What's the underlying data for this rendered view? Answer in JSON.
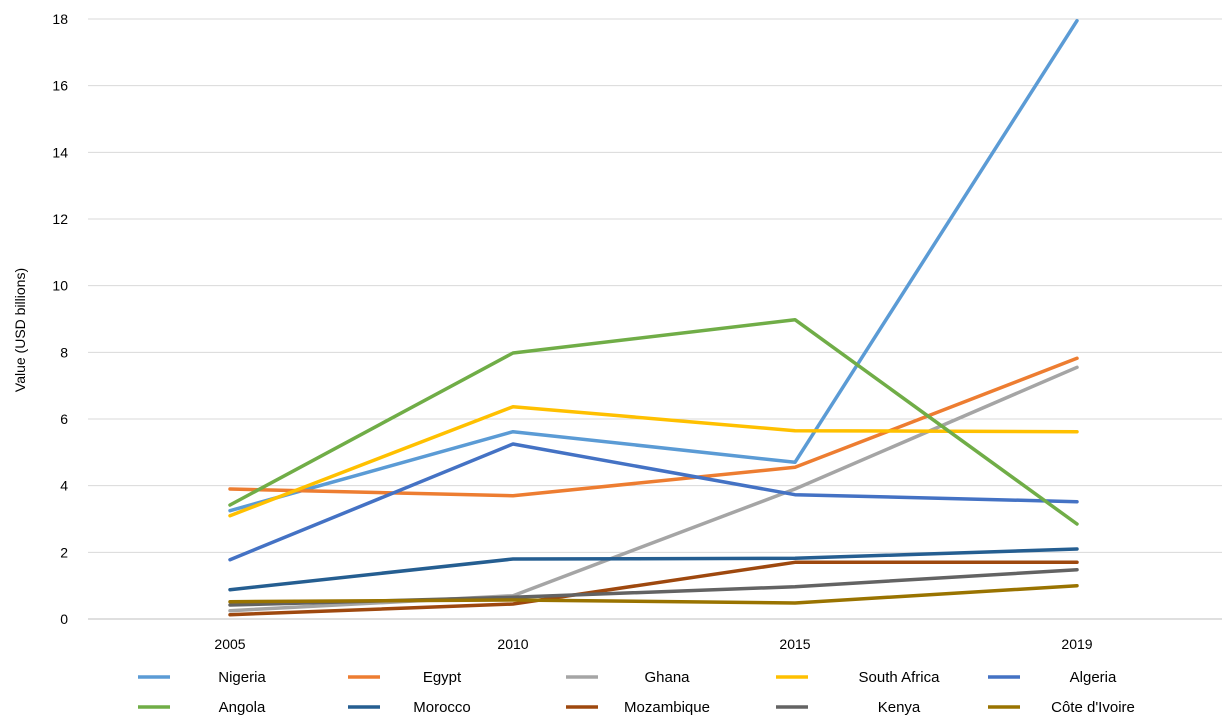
{
  "chart_data": {
    "type": "line",
    "x": [
      "2005",
      "2010",
      "2015",
      "2019"
    ],
    "ylabel": "Value (USD  billions)",
    "ylim": [
      0,
      18
    ],
    "yticks": [
      "0",
      "2",
      "4",
      "6",
      "8",
      "10",
      "12",
      "14",
      "16",
      "18"
    ],
    "grid": true,
    "legend_position": "bottom",
    "series": [
      {
        "name": "Nigeria",
        "color": "#5B9BD5",
        "values": [
          3.25,
          5.62,
          4.7,
          17.95
        ]
      },
      {
        "name": "Egypt",
        "color": "#ED7D31",
        "values": [
          3.9,
          3.7,
          4.55,
          7.82
        ]
      },
      {
        "name": "Ghana",
        "color": "#A5A5A5",
        "values": [
          0.25,
          0.7,
          3.9,
          7.55
        ]
      },
      {
        "name": "South Africa",
        "color": "#FFC000",
        "values": [
          3.1,
          6.37,
          5.65,
          5.62
        ]
      },
      {
        "name": "Algeria",
        "color": "#4472C4",
        "values": [
          1.78,
          5.25,
          3.73,
          3.52
        ]
      },
      {
        "name": "Angola",
        "color": "#70AD47",
        "values": [
          3.42,
          7.98,
          8.98,
          2.85
        ]
      },
      {
        "name": "Morocco",
        "color": "#255E91",
        "values": [
          0.88,
          1.8,
          1.82,
          2.1
        ]
      },
      {
        "name": "Mozambique",
        "color": "#9E480E",
        "values": [
          0.13,
          0.45,
          1.7,
          1.7
        ]
      },
      {
        "name": "Kenya",
        "color": "#636363",
        "values": [
          0.42,
          0.65,
          0.97,
          1.48
        ]
      },
      {
        "name": "Côte d'Ivoire",
        "color": "#997300",
        "values": [
          0.52,
          0.57,
          0.48,
          1.0
        ]
      }
    ]
  }
}
